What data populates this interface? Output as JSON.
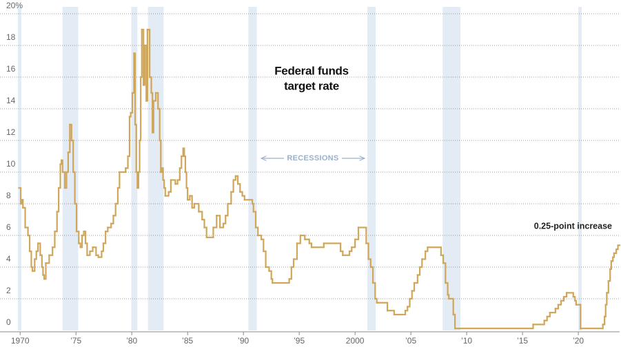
{
  "chart_data": {
    "type": "line",
    "annotations": [
      "Federal funds",
      "target rate",
      "RECESSIONS",
      "0.25-point increase"
    ],
    "color": "#cfa65a",
    "recession_color": "#e3ebf5",
    "recessions": [
      [
        1969.8,
        1970.1
      ],
      [
        1973.8,
        1975.2
      ],
      [
        1979.95,
        1980.5
      ],
      [
        1981.45,
        1982.85
      ],
      [
        1990.45,
        1991.2
      ],
      [
        2001.1,
        2001.85
      ],
      [
        2007.85,
        2009.45
      ],
      [
        2020.0,
        2020.3
      ]
    ],
    "xlim": [
      1969.8,
      2023.7
    ],
    "ylim": [
      0,
      20
    ],
    "xticks": [
      1970,
      {
        "value": 1975,
        "label": "’75"
      },
      {
        "value": 1980,
        "label": "’80"
      },
      {
        "value": 1985,
        "label": "’85"
      },
      {
        "value": 1990,
        "label": "’90"
      },
      {
        "value": 1995,
        "label": "’95"
      },
      2000,
      {
        "value": 2005,
        "label": "’05"
      },
      {
        "value": 2010,
        "label": "’10"
      },
      {
        "value": 2015,
        "label": "’15"
      },
      {
        "value": 2020,
        "label": "’20"
      }
    ],
    "yticks": [
      0,
      2,
      4,
      6,
      8,
      10,
      12,
      14,
      16,
      18,
      {
        "value": 20,
        "label": "20%"
      }
    ],
    "grid": true,
    "x": [
      1969.9,
      1970.05,
      1970.15,
      1970.25,
      1970.45,
      1970.7,
      1970.85,
      1971.0,
      1971.1,
      1971.3,
      1971.45,
      1971.6,
      1971.8,
      1971.95,
      1972.05,
      1972.15,
      1972.3,
      1972.6,
      1972.9,
      1973.1,
      1973.3,
      1973.45,
      1973.6,
      1973.7,
      1973.8,
      1974.0,
      1974.15,
      1974.3,
      1974.45,
      1974.6,
      1974.75,
      1974.9,
      1975.05,
      1975.25,
      1975.4,
      1975.55,
      1975.7,
      1975.85,
      1976.0,
      1976.25,
      1976.5,
      1976.8,
      1977.0,
      1977.3,
      1977.45,
      1977.65,
      1977.85,
      1978.15,
      1978.35,
      1978.55,
      1978.75,
      1978.9,
      1979.45,
      1979.65,
      1979.8,
      1979.9,
      1980.05,
      1980.2,
      1980.3,
      1980.4,
      1980.5,
      1980.6,
      1980.7,
      1980.8,
      1980.9,
      1981.05,
      1981.15,
      1981.3,
      1981.4,
      1981.6,
      1981.75,
      1981.85,
      1981.95,
      1982.15,
      1982.35,
      1982.5,
      1982.6,
      1982.7,
      1982.8,
      1982.9,
      1983.0,
      1983.3,
      1983.5,
      1983.9,
      1984.1,
      1984.3,
      1984.45,
      1984.6,
      1984.7,
      1984.8,
      1984.9,
      1985.0,
      1985.2,
      1985.4,
      1985.6,
      1986.0,
      1986.3,
      1986.5,
      1986.7,
      1987.3,
      1987.6,
      1987.9,
      1988.2,
      1988.4,
      1988.6,
      1988.9,
      1989.1,
      1989.3,
      1989.5,
      1989.7,
      1989.9,
      1990.1,
      1990.8,
      1990.9,
      1991.1,
      1991.3,
      1991.6,
      1991.8,
      1992.0,
      1992.3,
      1992.5,
      1992.6,
      1994.1,
      1994.3,
      1994.5,
      1994.8,
      1995.1,
      1995.5,
      1995.9,
      1996.1,
      1997.2,
      1998.7,
      1998.9,
      1999.5,
      1999.7,
      2000.0,
      2000.3,
      2001.0,
      2001.2,
      2001.4,
      2001.6,
      2001.8,
      2001.95,
      2002.9,
      2003.5,
      2004.5,
      2004.7,
      2004.9,
      2005.1,
      2005.3,
      2005.6,
      2005.8,
      2006.0,
      2006.3,
      2006.5,
      2007.7,
      2007.9,
      2008.1,
      2008.3,
      2008.4,
      2008.8,
      2008.95,
      2015.95,
      2016.95,
      2017.2,
      2017.45,
      2017.95,
      2018.2,
      2018.45,
      2018.7,
      2018.95,
      2019.55,
      2019.7,
      2019.8,
      2020.2,
      2022.2,
      2022.35,
      2022.45,
      2022.55,
      2022.7,
      2022.85,
      2022.95,
      2023.1,
      2023.2,
      2023.4,
      2023.55
    ],
    "values": [
      9.0,
      8.0,
      8.25,
      7.75,
      6.5,
      6.0,
      5.0,
      4.0,
      3.75,
      4.5,
      5.0,
      5.5,
      4.75,
      4.0,
      3.5,
      3.25,
      4.25,
      4.75,
      5.25,
      6.25,
      7.5,
      9.0,
      10.5,
      10.75,
      10.0,
      9.0,
      10.0,
      11.25,
      13.0,
      12.0,
      10.0,
      8.0,
      6.25,
      5.5,
      5.25,
      6.0,
      6.25,
      5.5,
      4.75,
      5.0,
      5.25,
      4.75,
      4.625,
      5.0,
      5.5,
      6.25,
      6.5,
      6.75,
      7.25,
      8.0,
      9.0,
      10.0,
      10.25,
      11.0,
      13.5,
      13.75,
      15.0,
      17.5,
      13.0,
      10.0,
      9.0,
      10.0,
      12.0,
      16.0,
      19.0,
      15.5,
      18.0,
      14.5,
      19.0,
      16.0,
      15.0,
      12.5,
      14.5,
      15.0,
      14.0,
      12.0,
      10.0,
      10.25,
      9.5,
      9.0,
      8.5,
      8.75,
      9.5,
      9.25,
      9.5,
      10.25,
      11.0,
      11.5,
      11.0,
      10.0,
      9.0,
      8.25,
      8.5,
      7.75,
      8.0,
      7.5,
      7.0,
      6.5,
      5.875,
      6.5,
      7.25,
      6.5,
      6.75,
      7.25,
      8.0,
      8.75,
      9.5,
      9.75,
      9.25,
      8.75,
      8.5,
      8.25,
      8.0,
      7.5,
      6.5,
      6.0,
      5.75,
      5.0,
      4.0,
      3.75,
      3.25,
      3.0,
      3.25,
      4.0,
      4.5,
      5.5,
      6.0,
      5.75,
      5.5,
      5.25,
      5.5,
      5.0,
      4.75,
      5.0,
      5.25,
      5.75,
      6.5,
      5.5,
      4.5,
      4.0,
      3.0,
      2.0,
      1.75,
      1.25,
      1.0,
      1.25,
      1.5,
      2.0,
      2.5,
      3.0,
      3.5,
      4.0,
      4.5,
      5.0,
      5.25,
      4.75,
      4.25,
      3.0,
      2.25,
      2.0,
      1.0,
      0.125,
      0.375,
      0.625,
      0.875,
      1.125,
      1.375,
      1.625,
      1.875,
      2.125,
      2.375,
      2.125,
      1.875,
      1.625,
      0.125,
      0.375,
      0.875,
      1.625,
      2.375,
      3.125,
      3.875,
      4.375,
      4.625,
      4.875,
      5.125,
      5.375
    ]
  }
}
